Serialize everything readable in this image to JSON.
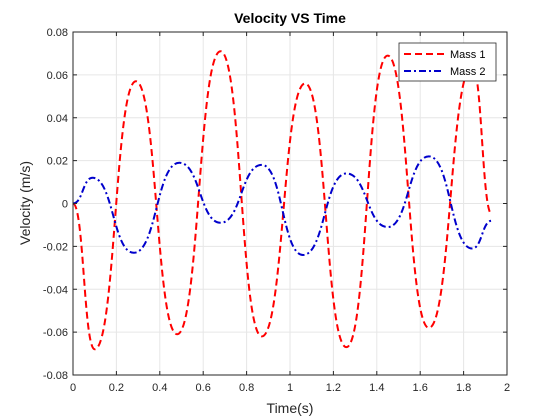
{
  "chart_data": {
    "type": "line",
    "title": "Velocity VS Time",
    "xlabel": "Time(s)",
    "ylabel": "Velocity (m/s)",
    "xlim": [
      0,
      2
    ],
    "ylim": [
      -0.08,
      0.08
    ],
    "x_ticks": [
      "0",
      "0.2",
      "0.4",
      "0.6",
      "0.8",
      "1",
      "1.2",
      "1.4",
      "1.6",
      "1.8",
      "2"
    ],
    "y_ticks": [
      "-0.08",
      "-0.06",
      "-0.04",
      "-0.02",
      "0",
      "0.02",
      "0.04",
      "0.06",
      "0.08"
    ],
    "grid": true,
    "legend_position": "top-right",
    "series": [
      {
        "name": "Mass 1",
        "color": "#ff0000",
        "line_style": "dashed",
        "x": [
          0,
          0.1,
          0.29,
          0.48,
          0.68,
          0.87,
          1.07,
          1.26,
          1.45,
          1.64,
          1.84,
          1.93
        ],
        "y": [
          0,
          -0.068,
          0.057,
          -0.061,
          0.071,
          -0.062,
          0.056,
          -0.067,
          0.069,
          -0.058,
          0.064,
          -0.005
        ]
      },
      {
        "name": "Mass 2",
        "color": "#0000cc",
        "line_style": "dash-dot",
        "x": [
          0,
          0.09,
          0.28,
          0.49,
          0.68,
          0.87,
          1.06,
          1.26,
          1.45,
          1.64,
          1.84,
          1.93
        ],
        "y": [
          0,
          0.012,
          -0.023,
          0.019,
          -0.009,
          0.018,
          -0.024,
          0.014,
          -0.011,
          0.022,
          -0.021,
          -0.008
        ]
      }
    ]
  }
}
